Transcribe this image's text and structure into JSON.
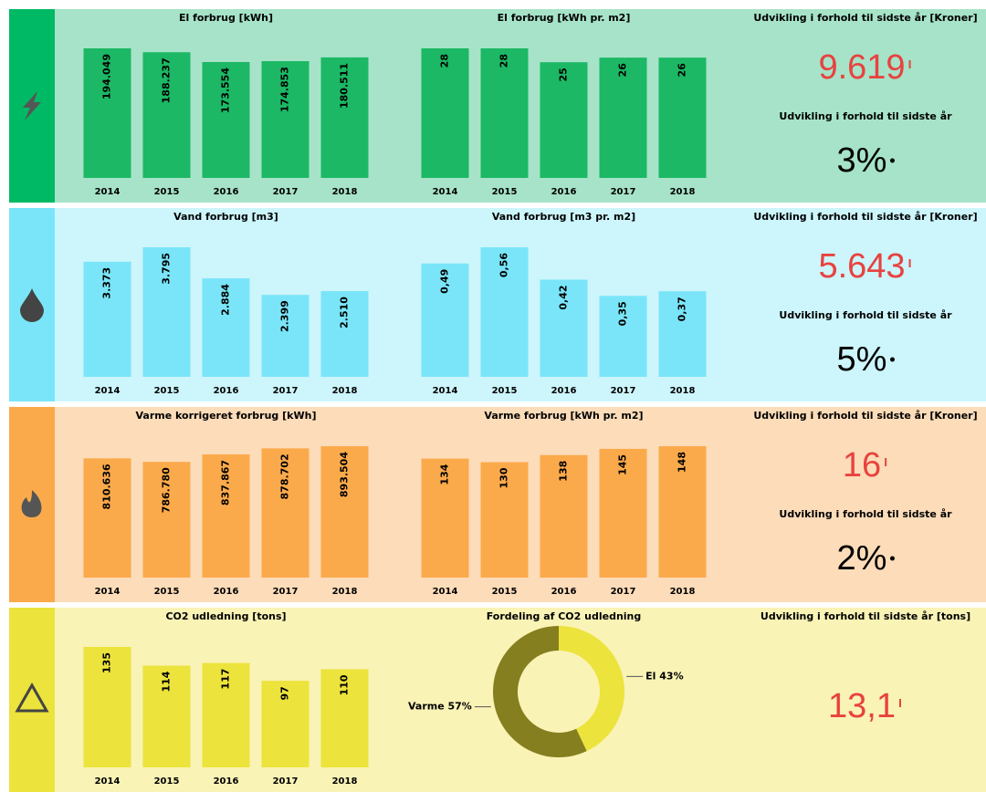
{
  "chart_data": [
    {
      "type": "bar",
      "title": "El forbrug [kWh]",
      "categories": [
        "2014",
        "2015",
        "2016",
        "2017",
        "2018"
      ],
      "values": [
        194049,
        188237,
        173554,
        174853,
        180511
      ],
      "value_labels": [
        "194.049",
        "188.237",
        "173.554",
        "174.853",
        "180.511"
      ],
      "color": "#1cb865"
    },
    {
      "type": "bar",
      "title": "El forbrug [kWh pr. m2]",
      "categories": [
        "2014",
        "2015",
        "2016",
        "2017",
        "2018"
      ],
      "values": [
        28,
        28,
        25,
        26,
        26
      ],
      "color": "#1cb865"
    },
    {
      "type": "bar",
      "title": "Vand forbrug [m3]",
      "categories": [
        "2014",
        "2015",
        "2016",
        "2017",
        "2018"
      ],
      "values": [
        3373,
        3795,
        2884,
        2399,
        2510
      ],
      "value_labels": [
        "3.373",
        "3.795",
        "2.884",
        "2.399",
        "2.510"
      ],
      "color": "#7ae5f8"
    },
    {
      "type": "bar",
      "title": "Vand forbrug [m3 pr. m2]",
      "categories": [
        "2014",
        "2015",
        "2016",
        "2017",
        "2018"
      ],
      "values": [
        0.49,
        0.56,
        0.42,
        0.35,
        0.37
      ],
      "value_labels": [
        "0,49",
        "0,56",
        "0,42",
        "0,35",
        "0,37"
      ],
      "color": "#7ae5f8"
    },
    {
      "type": "bar",
      "title": "Varme korrigeret forbrug [kWh]",
      "categories": [
        "2014",
        "2015",
        "2016",
        "2017",
        "2018"
      ],
      "values": [
        810636,
        786780,
        837867,
        878702,
        893504
      ],
      "value_labels": [
        "810.636",
        "786.780",
        "837.867",
        "878.702",
        "893.504"
      ],
      "color": "#fbaa4b"
    },
    {
      "type": "bar",
      "title": "Varme forbrug [kWh pr. m2]",
      "categories": [
        "2014",
        "2015",
        "2016",
        "2017",
        "2018"
      ],
      "values": [
        134,
        130,
        138,
        145,
        148
      ],
      "color": "#fbaa4b"
    },
    {
      "type": "bar",
      "title": "CO2 udledning [tons]",
      "categories": [
        "2014",
        "2015",
        "2016",
        "2017",
        "2018"
      ],
      "values": [
        135,
        114,
        117,
        97,
        110
      ],
      "color": "#ece33c"
    },
    {
      "type": "pie",
      "title": "Fordeling af CO2 udledning",
      "categories": [
        "El",
        "Varme"
      ],
      "values": [
        43,
        57
      ],
      "value_labels": [
        "El 43%",
        "Varme 57%"
      ],
      "colors": [
        "#ece33c",
        "#857f1f"
      ]
    }
  ],
  "kpis": [
    {
      "title": "Udvikling i forhold til sidste år [Kroner]",
      "value": "9.619",
      "subtitle": "Udvikling i forhold til sidste år",
      "percent": "3%"
    },
    {
      "title": "Udvikling i forhold til sidste år [Kroner]",
      "value": "5.643",
      "subtitle": "Udvikling i forhold til sidste år",
      "percent": "5%"
    },
    {
      "title": "Udvikling i forhold til sidste år [Kroner]",
      "value": "16",
      "subtitle": "Udvikling i forhold til sidste år",
      "percent": "2%"
    },
    {
      "title": "Udvikling i forhold til sidste år [tons]",
      "value": "13,1"
    }
  ]
}
